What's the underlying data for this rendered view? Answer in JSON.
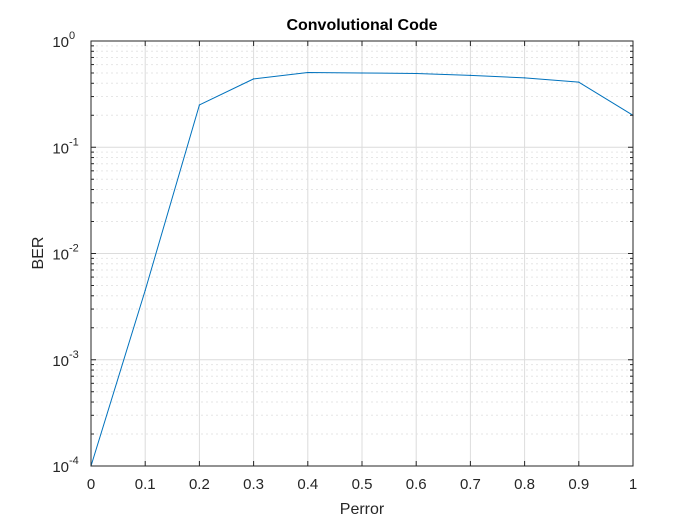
{
  "chart_data": {
    "type": "line",
    "title": "Convolutional Code",
    "xlabel": "Perror",
    "ylabel": "BER",
    "xlim": [
      0,
      1
    ],
    "ylim": [
      0.0001,
      1
    ],
    "yscale": "log",
    "grid": true,
    "minor_grid": true,
    "x_ticks": [
      "0",
      "0.1",
      "0.2",
      "0.3",
      "0.4",
      "0.5",
      "0.6",
      "0.7",
      "0.8",
      "0.9",
      "1"
    ],
    "y_ticks": [
      {
        "base": "10",
        "exp": "-4",
        "value": 0.0001
      },
      {
        "base": "10",
        "exp": "-3",
        "value": 0.001
      },
      {
        "base": "10",
        "exp": "-2",
        "value": 0.01
      },
      {
        "base": "10",
        "exp": "-1",
        "value": 0.1
      },
      {
        "base": "10",
        "exp": "0",
        "value": 1
      }
    ],
    "series": [
      {
        "color": "#0072BD",
        "x": [
          0,
          0.1,
          0.2,
          0.3,
          0.4,
          0.5,
          0.6,
          0.7,
          0.8,
          0.9,
          1
        ],
        "y": [
          0.0001,
          0.0045,
          0.25,
          0.44,
          0.505,
          0.5,
          0.495,
          0.475,
          0.45,
          0.41,
          0.2
        ]
      }
    ]
  }
}
